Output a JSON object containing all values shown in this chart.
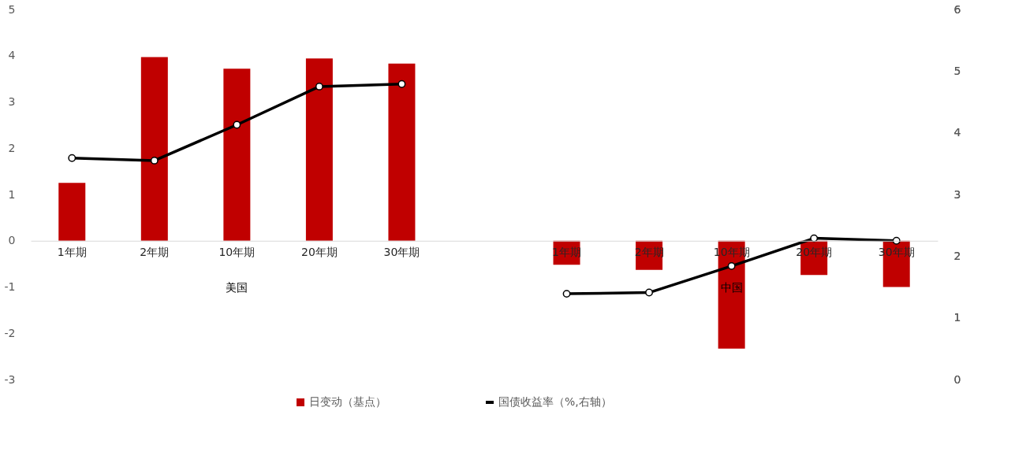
{
  "chart_data": {
    "type": "bar",
    "categories": [
      "1年期",
      "2年期",
      "10年期",
      "20年期",
      "30年期",
      null,
      "1年期",
      "2年期",
      "10年期",
      "20年期",
      "30年期"
    ],
    "series": [
      {
        "name": "日变动（基点）",
        "color": "#c00000",
        "values": [
          1.25,
          3.97,
          3.72,
          3.94,
          3.83,
          null,
          -0.52,
          -0.63,
          -2.33,
          -0.74,
          -1.0
        ]
      },
      {
        "name": "国债收益率（%,右轴）",
        "type": "line",
        "axis": "y2",
        "color": "#000000",
        "marker": "circle",
        "values": [
          3.59,
          3.55,
          4.13,
          4.75,
          4.79,
          null,
          1.39,
          1.41,
          1.84,
          2.29,
          2.25
        ]
      }
    ],
    "ylim": [
      -3,
      5
    ],
    "yticks": [
      -3,
      -2,
      -1,
      0,
      1,
      2,
      3,
      4,
      5
    ],
    "y2lim": [
      0,
      6
    ],
    "y2ticks": [
      0,
      1,
      2,
      3,
      4,
      5,
      6
    ],
    "annotations": [
      "美国",
      "中国"
    ],
    "grid": false,
    "legend": "bottom"
  }
}
